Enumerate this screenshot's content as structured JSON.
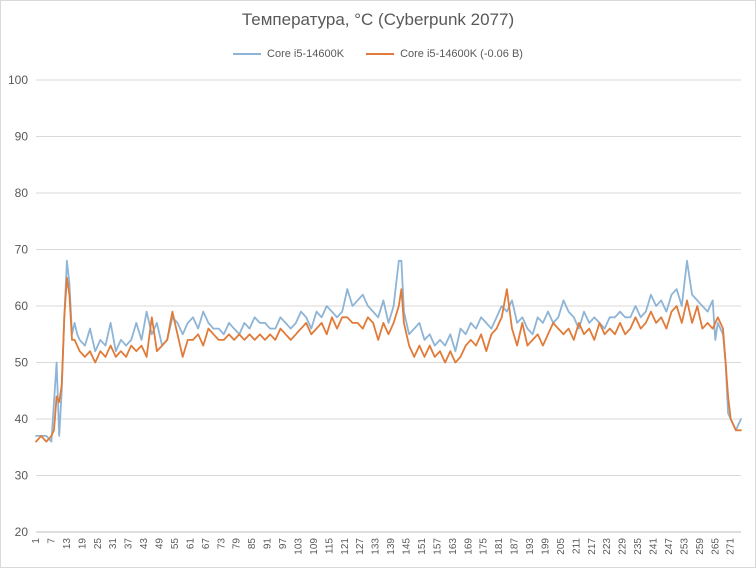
{
  "chart_data": {
    "type": "line",
    "title": "Температура, °C (Cyberpunk 2077)",
    "xlabel": "",
    "ylabel": "",
    "ylim": [
      20,
      100
    ],
    "yticks": [
      20,
      30,
      40,
      50,
      60,
      70,
      80,
      90,
      100
    ],
    "x_start": 1,
    "x_count": 275,
    "x_tick_step": 6,
    "grid": true,
    "legend_position": "top",
    "series": [
      {
        "name": "Core i5-14600K",
        "color": "#8eb4d6",
        "anchors": [
          [
            1,
            37
          ],
          [
            5,
            37
          ],
          [
            7,
            36
          ],
          [
            9,
            50
          ],
          [
            10,
            37
          ],
          [
            11,
            45
          ],
          [
            12,
            58
          ],
          [
            13,
            68
          ],
          [
            14,
            64
          ],
          [
            15,
            55
          ],
          [
            16,
            57
          ],
          [
            17,
            55
          ],
          [
            18,
            54
          ],
          [
            20,
            53
          ],
          [
            22,
            56
          ],
          [
            24,
            52
          ],
          [
            26,
            54
          ],
          [
            28,
            53
          ],
          [
            30,
            57
          ],
          [
            32,
            52
          ],
          [
            34,
            54
          ],
          [
            36,
            53
          ],
          [
            38,
            54
          ],
          [
            40,
            57
          ],
          [
            42,
            54
          ],
          [
            44,
            59
          ],
          [
            46,
            55
          ],
          [
            48,
            57
          ],
          [
            50,
            53
          ],
          [
            52,
            54
          ],
          [
            54,
            58
          ],
          [
            56,
            57
          ],
          [
            58,
            55
          ],
          [
            60,
            57
          ],
          [
            62,
            58
          ],
          [
            64,
            56
          ],
          [
            66,
            59
          ],
          [
            68,
            57
          ],
          [
            70,
            56
          ],
          [
            72,
            56
          ],
          [
            74,
            55
          ],
          [
            76,
            57
          ],
          [
            78,
            56
          ],
          [
            80,
            55
          ],
          [
            82,
            57
          ],
          [
            84,
            56
          ],
          [
            86,
            58
          ],
          [
            88,
            57
          ],
          [
            90,
            57
          ],
          [
            92,
            56
          ],
          [
            94,
            56
          ],
          [
            96,
            58
          ],
          [
            98,
            57
          ],
          [
            100,
            56
          ],
          [
            102,
            57
          ],
          [
            104,
            59
          ],
          [
            106,
            58
          ],
          [
            108,
            56
          ],
          [
            110,
            59
          ],
          [
            112,
            58
          ],
          [
            114,
            60
          ],
          [
            116,
            59
          ],
          [
            118,
            58
          ],
          [
            120,
            59
          ],
          [
            122,
            63
          ],
          [
            124,
            60
          ],
          [
            126,
            61
          ],
          [
            128,
            62
          ],
          [
            130,
            60
          ],
          [
            132,
            59
          ],
          [
            134,
            58
          ],
          [
            136,
            61
          ],
          [
            138,
            57
          ],
          [
            140,
            60
          ],
          [
            142,
            68
          ],
          [
            143,
            68
          ],
          [
            144,
            59
          ],
          [
            146,
            55
          ],
          [
            148,
            56
          ],
          [
            150,
            57
          ],
          [
            152,
            54
          ],
          [
            154,
            55
          ],
          [
            156,
            53
          ],
          [
            158,
            54
          ],
          [
            160,
            53
          ],
          [
            162,
            55
          ],
          [
            164,
            52
          ],
          [
            166,
            56
          ],
          [
            168,
            55
          ],
          [
            170,
            57
          ],
          [
            172,
            56
          ],
          [
            174,
            58
          ],
          [
            176,
            57
          ],
          [
            178,
            56
          ],
          [
            180,
            58
          ],
          [
            182,
            60
          ],
          [
            184,
            59
          ],
          [
            186,
            61
          ],
          [
            188,
            57
          ],
          [
            190,
            58
          ],
          [
            192,
            56
          ],
          [
            194,
            55
          ],
          [
            196,
            58
          ],
          [
            198,
            57
          ],
          [
            200,
            59
          ],
          [
            202,
            57
          ],
          [
            204,
            58
          ],
          [
            206,
            61
          ],
          [
            208,
            59
          ],
          [
            210,
            58
          ],
          [
            212,
            56
          ],
          [
            214,
            59
          ],
          [
            216,
            57
          ],
          [
            218,
            58
          ],
          [
            220,
            57
          ],
          [
            222,
            56
          ],
          [
            224,
            58
          ],
          [
            226,
            58
          ],
          [
            228,
            59
          ],
          [
            230,
            58
          ],
          [
            232,
            58
          ],
          [
            234,
            60
          ],
          [
            236,
            58
          ],
          [
            238,
            59
          ],
          [
            240,
            62
          ],
          [
            242,
            60
          ],
          [
            244,
            61
          ],
          [
            246,
            59
          ],
          [
            248,
            62
          ],
          [
            250,
            63
          ],
          [
            252,
            60
          ],
          [
            254,
            68
          ],
          [
            256,
            62
          ],
          [
            258,
            61
          ],
          [
            260,
            60
          ],
          [
            262,
            59
          ],
          [
            264,
            61
          ],
          [
            265,
            54
          ],
          [
            266,
            57
          ],
          [
            267,
            56
          ],
          [
            268,
            55
          ],
          [
            269,
            50
          ],
          [
            270,
            41
          ],
          [
            271,
            40
          ],
          [
            272,
            39
          ],
          [
            273,
            38
          ],
          [
            275,
            40
          ]
        ]
      },
      {
        "name": "Core i5-14600K (-0.06 В)",
        "color": "#e07b39",
        "anchors": [
          [
            1,
            36
          ],
          [
            3,
            37
          ],
          [
            5,
            36
          ],
          [
            7,
            37
          ],
          [
            8,
            38
          ],
          [
            9,
            44
          ],
          [
            10,
            43
          ],
          [
            11,
            46
          ],
          [
            12,
            58
          ],
          [
            13,
            65
          ],
          [
            14,
            62
          ],
          [
            15,
            54
          ],
          [
            16,
            54
          ],
          [
            17,
            53
          ],
          [
            18,
            52
          ],
          [
            20,
            51
          ],
          [
            22,
            52
          ],
          [
            24,
            50
          ],
          [
            26,
            52
          ],
          [
            28,
            51
          ],
          [
            30,
            53
          ],
          [
            32,
            51
          ],
          [
            34,
            52
          ],
          [
            36,
            51
          ],
          [
            38,
            53
          ],
          [
            40,
            52
          ],
          [
            42,
            53
          ],
          [
            44,
            51
          ],
          [
            46,
            58
          ],
          [
            48,
            52
          ],
          [
            50,
            53
          ],
          [
            52,
            54
          ],
          [
            54,
            59
          ],
          [
            56,
            55
          ],
          [
            58,
            51
          ],
          [
            60,
            54
          ],
          [
            62,
            54
          ],
          [
            64,
            55
          ],
          [
            66,
            53
          ],
          [
            68,
            56
          ],
          [
            70,
            55
          ],
          [
            72,
            54
          ],
          [
            74,
            54
          ],
          [
            76,
            55
          ],
          [
            78,
            54
          ],
          [
            80,
            55
          ],
          [
            82,
            54
          ],
          [
            84,
            55
          ],
          [
            86,
            54
          ],
          [
            88,
            55
          ],
          [
            90,
            54
          ],
          [
            92,
            55
          ],
          [
            94,
            54
          ],
          [
            96,
            56
          ],
          [
            98,
            55
          ],
          [
            100,
            54
          ],
          [
            102,
            55
          ],
          [
            104,
            56
          ],
          [
            106,
            57
          ],
          [
            108,
            55
          ],
          [
            110,
            56
          ],
          [
            112,
            57
          ],
          [
            114,
            55
          ],
          [
            116,
            58
          ],
          [
            118,
            56
          ],
          [
            120,
            58
          ],
          [
            122,
            58
          ],
          [
            124,
            57
          ],
          [
            126,
            57
          ],
          [
            128,
            56
          ],
          [
            130,
            58
          ],
          [
            132,
            57
          ],
          [
            134,
            54
          ],
          [
            136,
            57
          ],
          [
            138,
            55
          ],
          [
            140,
            57
          ],
          [
            142,
            60
          ],
          [
            143,
            63
          ],
          [
            144,
            57
          ],
          [
            146,
            53
          ],
          [
            148,
            51
          ],
          [
            150,
            53
          ],
          [
            152,
            51
          ],
          [
            154,
            53
          ],
          [
            156,
            51
          ],
          [
            158,
            52
          ],
          [
            160,
            50
          ],
          [
            162,
            52
          ],
          [
            164,
            50
          ],
          [
            166,
            51
          ],
          [
            168,
            53
          ],
          [
            170,
            54
          ],
          [
            172,
            53
          ],
          [
            174,
            55
          ],
          [
            176,
            52
          ],
          [
            178,
            55
          ],
          [
            180,
            56
          ],
          [
            182,
            58
          ],
          [
            184,
            63
          ],
          [
            186,
            56
          ],
          [
            188,
            53
          ],
          [
            190,
            57
          ],
          [
            192,
            53
          ],
          [
            194,
            54
          ],
          [
            196,
            55
          ],
          [
            198,
            53
          ],
          [
            200,
            55
          ],
          [
            202,
            57
          ],
          [
            204,
            56
          ],
          [
            206,
            55
          ],
          [
            208,
            56
          ],
          [
            210,
            54
          ],
          [
            212,
            57
          ],
          [
            214,
            55
          ],
          [
            216,
            56
          ],
          [
            218,
            54
          ],
          [
            220,
            57
          ],
          [
            222,
            55
          ],
          [
            224,
            56
          ],
          [
            226,
            55
          ],
          [
            228,
            57
          ],
          [
            230,
            55
          ],
          [
            232,
            56
          ],
          [
            234,
            58
          ],
          [
            236,
            56
          ],
          [
            238,
            57
          ],
          [
            240,
            59
          ],
          [
            242,
            57
          ],
          [
            244,
            58
          ],
          [
            246,
            56
          ],
          [
            248,
            59
          ],
          [
            250,
            60
          ],
          [
            252,
            57
          ],
          [
            254,
            61
          ],
          [
            256,
            57
          ],
          [
            258,
            60
          ],
          [
            260,
            56
          ],
          [
            262,
            57
          ],
          [
            264,
            56
          ],
          [
            266,
            58
          ],
          [
            267,
            57
          ],
          [
            268,
            56
          ],
          [
            269,
            50
          ],
          [
            270,
            44
          ],
          [
            271,
            40
          ],
          [
            272,
            39
          ],
          [
            273,
            38
          ],
          [
            275,
            38
          ]
        ]
      }
    ]
  }
}
